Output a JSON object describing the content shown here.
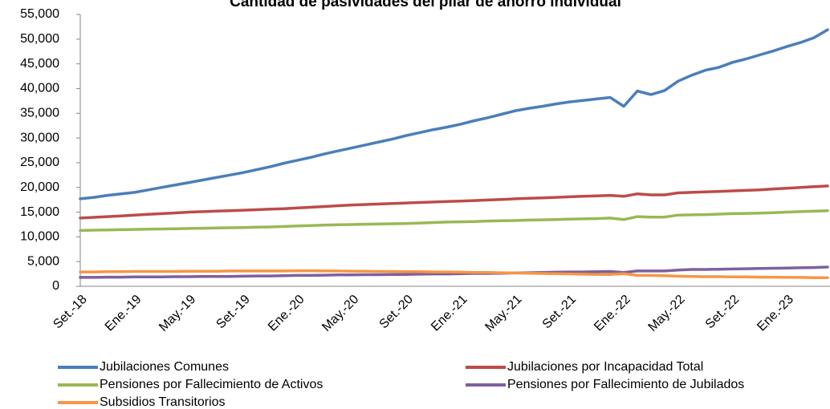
{
  "chart_data": {
    "type": "line",
    "title": "Cantidad de pasividades del pilar de ahorro individual",
    "categories": [
      "Set.-18",
      null,
      null,
      null,
      "Ene.-19",
      null,
      null,
      null,
      "May.-19",
      null,
      null,
      null,
      "Set.-19",
      null,
      null,
      null,
      "Ene.-20",
      null,
      null,
      null,
      "May.-20",
      null,
      null,
      null,
      "Set.-20",
      null,
      null,
      null,
      "Ene.-21",
      null,
      null,
      null,
      "May.-21",
      null,
      null,
      null,
      "Set.-21",
      null,
      null,
      null,
      "Ene.-22",
      null,
      null,
      null,
      "May.-22",
      null,
      null,
      null,
      "Set.-22",
      null,
      null,
      null,
      "Ene.-23",
      null,
      null,
      null
    ],
    "series": [
      {
        "name": "Jubilaciones Comunes",
        "color": "#4a7ebb",
        "values": [
          17700,
          18000,
          18400,
          18700,
          19000,
          19500,
          20000,
          20500,
          21000,
          21500,
          22000,
          22500,
          23000,
          23600,
          24200,
          24900,
          25500,
          26100,
          26800,
          27400,
          28000,
          28600,
          29200,
          29800,
          30500,
          31100,
          31700,
          32200,
          32800,
          33500,
          34100,
          34800,
          35500,
          36000,
          36400,
          36900,
          37300,
          37600,
          37900,
          38200,
          36400,
          39500,
          38800,
          39600,
          41500,
          42700,
          43700,
          44300,
          45300,
          46000,
          46800,
          47600,
          48500,
          49300,
          50300,
          51900
        ]
      },
      {
        "name": "Jubilaciones por Incapacidad Total",
        "color": "#be4b48",
        "values": [
          13800,
          13950,
          14100,
          14250,
          14400,
          14550,
          14700,
          14850,
          15000,
          15100,
          15200,
          15300,
          15400,
          15500,
          15600,
          15700,
          15850,
          16000,
          16150,
          16300,
          16450,
          16550,
          16650,
          16750,
          16850,
          16950,
          17050,
          17150,
          17250,
          17350,
          17450,
          17550,
          17700,
          17800,
          17900,
          18000,
          18100,
          18200,
          18300,
          18400,
          18200,
          18700,
          18500,
          18500,
          18900,
          19000,
          19100,
          19200,
          19300,
          19400,
          19500,
          19700,
          19850,
          20000,
          20150,
          20300
        ]
      },
      {
        "name": "Pensiones por Fallecimiento de Activos",
        "color": "#98b954",
        "values": [
          11300,
          11350,
          11400,
          11450,
          11500,
          11550,
          11600,
          11650,
          11700,
          11750,
          11800,
          11850,
          11900,
          11950,
          12000,
          12100,
          12200,
          12300,
          12400,
          12450,
          12500,
          12550,
          12600,
          12650,
          12700,
          12800,
          12900,
          13000,
          13050,
          13100,
          13200,
          13250,
          13300,
          13400,
          13450,
          13500,
          13600,
          13650,
          13700,
          13800,
          13500,
          14100,
          14000,
          14000,
          14400,
          14450,
          14500,
          14600,
          14700,
          14750,
          14800,
          14900,
          15000,
          15100,
          15200,
          15300
        ]
      },
      {
        "name": "Pensiones por Fallecimiento de Jubilados",
        "color": "#7d60a0",
        "values": [
          1800,
          1800,
          1850,
          1850,
          1900,
          1900,
          1900,
          1950,
          1950,
          2000,
          2000,
          2000,
          2050,
          2100,
          2100,
          2150,
          2200,
          2200,
          2250,
          2300,
          2300,
          2350,
          2350,
          2400,
          2400,
          2450,
          2500,
          2500,
          2550,
          2600,
          2600,
          2650,
          2700,
          2750,
          2800,
          2850,
          2900,
          2900,
          2950,
          3000,
          2800,
          3100,
          3100,
          3100,
          3300,
          3400,
          3400,
          3450,
          3500,
          3550,
          3600,
          3650,
          3700,
          3750,
          3800,
          3900
        ]
      },
      {
        "name": "Subsidios Transitorios",
        "color": "#f79646",
        "values": [
          2900,
          2900,
          2950,
          2950,
          3000,
          3000,
          3000,
          3000,
          3050,
          3050,
          3050,
          3100,
          3100,
          3100,
          3100,
          3100,
          3150,
          3150,
          3100,
          3100,
          3050,
          3050,
          3000,
          3000,
          2950,
          2950,
          2900,
          2900,
          2850,
          2800,
          2800,
          2750,
          2700,
          2650,
          2600,
          2550,
          2500,
          2450,
          2400,
          2400,
          2550,
          2200,
          2200,
          2150,
          2050,
          2000,
          1950,
          1950,
          1900,
          1900,
          1850,
          1850,
          1800,
          1800,
          1750,
          1750
        ]
      }
    ],
    "ylim": [
      0,
      55000
    ],
    "yticks": [
      0,
      {
        "value": 5000,
        "label": "5,000"
      },
      {
        "value": 10000,
        "label": "10,000"
      },
      {
        "value": 15000,
        "label": "15,000"
      },
      {
        "value": 20000,
        "label": "20,000"
      },
      {
        "value": 25000,
        "label": "25,000"
      },
      {
        "value": 30000,
        "label": "30,000"
      },
      {
        "value": 35000,
        "label": "35,000"
      },
      {
        "value": 40000,
        "label": "40,000"
      },
      {
        "value": 45000,
        "label": "45,000"
      },
      {
        "value": 50000,
        "label": "50,000"
      },
      {
        "value": 55000,
        "label": "55,000"
      }
    ],
    "grid": false,
    "legend": "bottom"
  }
}
